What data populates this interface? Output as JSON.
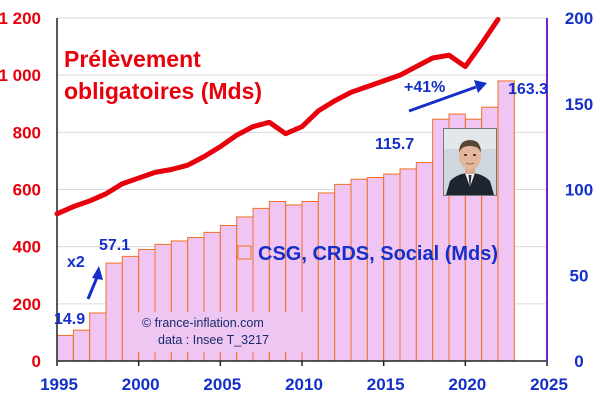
{
  "chart_data": {
    "type": "bar+line",
    "x_axis": {
      "min": 1995,
      "max": 2025,
      "ticks": [
        1995,
        2000,
        2005,
        2010,
        2015,
        2020,
        2025
      ]
    },
    "y_left": {
      "min": 0,
      "max": 1200,
      "ticks": [
        0,
        200,
        400,
        600,
        800,
        1000,
        1200
      ],
      "tick_labels": [
        "0",
        "200",
        "400",
        "600",
        "800",
        "1 000",
        "1 200"
      ]
    },
    "y_right": {
      "min": 0,
      "max": 200,
      "ticks": [
        0,
        50,
        100,
        150,
        200
      ],
      "tick_labels": [
        "0",
        "50",
        "100",
        "150",
        "200"
      ]
    },
    "line_series": {
      "name": "Prélèvement obligatoires (Mds)",
      "axis": "left",
      "color": "#e8000c",
      "x": [
        1995,
        1996,
        1997,
        1998,
        1999,
        2000,
        2001,
        2002,
        2003,
        2004,
        2005,
        2006,
        2007,
        2008,
        2009,
        2010,
        2011,
        2012,
        2013,
        2014,
        2015,
        2016,
        2017,
        2018,
        2019,
        2020,
        2021,
        2022
      ],
      "values": [
        515,
        540,
        560,
        585,
        620,
        640,
        660,
        670,
        685,
        715,
        750,
        790,
        820,
        835,
        795,
        820,
        875,
        910,
        940,
        960,
        980,
        1000,
        1030,
        1060,
        1070,
        1030,
        1110,
        1195
      ]
    },
    "bar_series": {
      "name": "CSG, CRDS, Social (Mds)",
      "axis": "right",
      "fill": "#f0c4f3",
      "edge": "#f07020",
      "x": [
        1995,
        1996,
        1997,
        1998,
        1999,
        2000,
        2001,
        2002,
        2003,
        2004,
        2005,
        2006,
        2007,
        2008,
        2009,
        2010,
        2011,
        2012,
        2013,
        2014,
        2015,
        2016,
        2017,
        2018,
        2019,
        2020,
        2021,
        2022
      ],
      "values": [
        14.9,
        18,
        28,
        57.1,
        61,
        65,
        68,
        70,
        72,
        75,
        79,
        84,
        89,
        93,
        91,
        93,
        98,
        103,
        106,
        107,
        109,
        112,
        115.7,
        141,
        144,
        141,
        148,
        163.3
      ]
    },
    "annotations": {
      "title_line1": "Prélèvement",
      "title_line2": "obligatoires (Mds)",
      "legend_bars": "CSG, CRDS, Social (Mds)",
      "label_start": "14.9",
      "label_x2": "x2",
      "label_57": "57.1",
      "label_115": "115.7",
      "label_plus41": "+41%",
      "label_end": "163.3"
    },
    "source": {
      "credit": "© france-inflation.com",
      "data_ref": "data : Insee T_3217"
    },
    "colors": {
      "red": "#e8000c",
      "blue_axis": "#1530c8",
      "purple_axis": "#7b1fd0",
      "bar_fill": "#f0c4f3",
      "bar_edge": "#f07020"
    }
  }
}
